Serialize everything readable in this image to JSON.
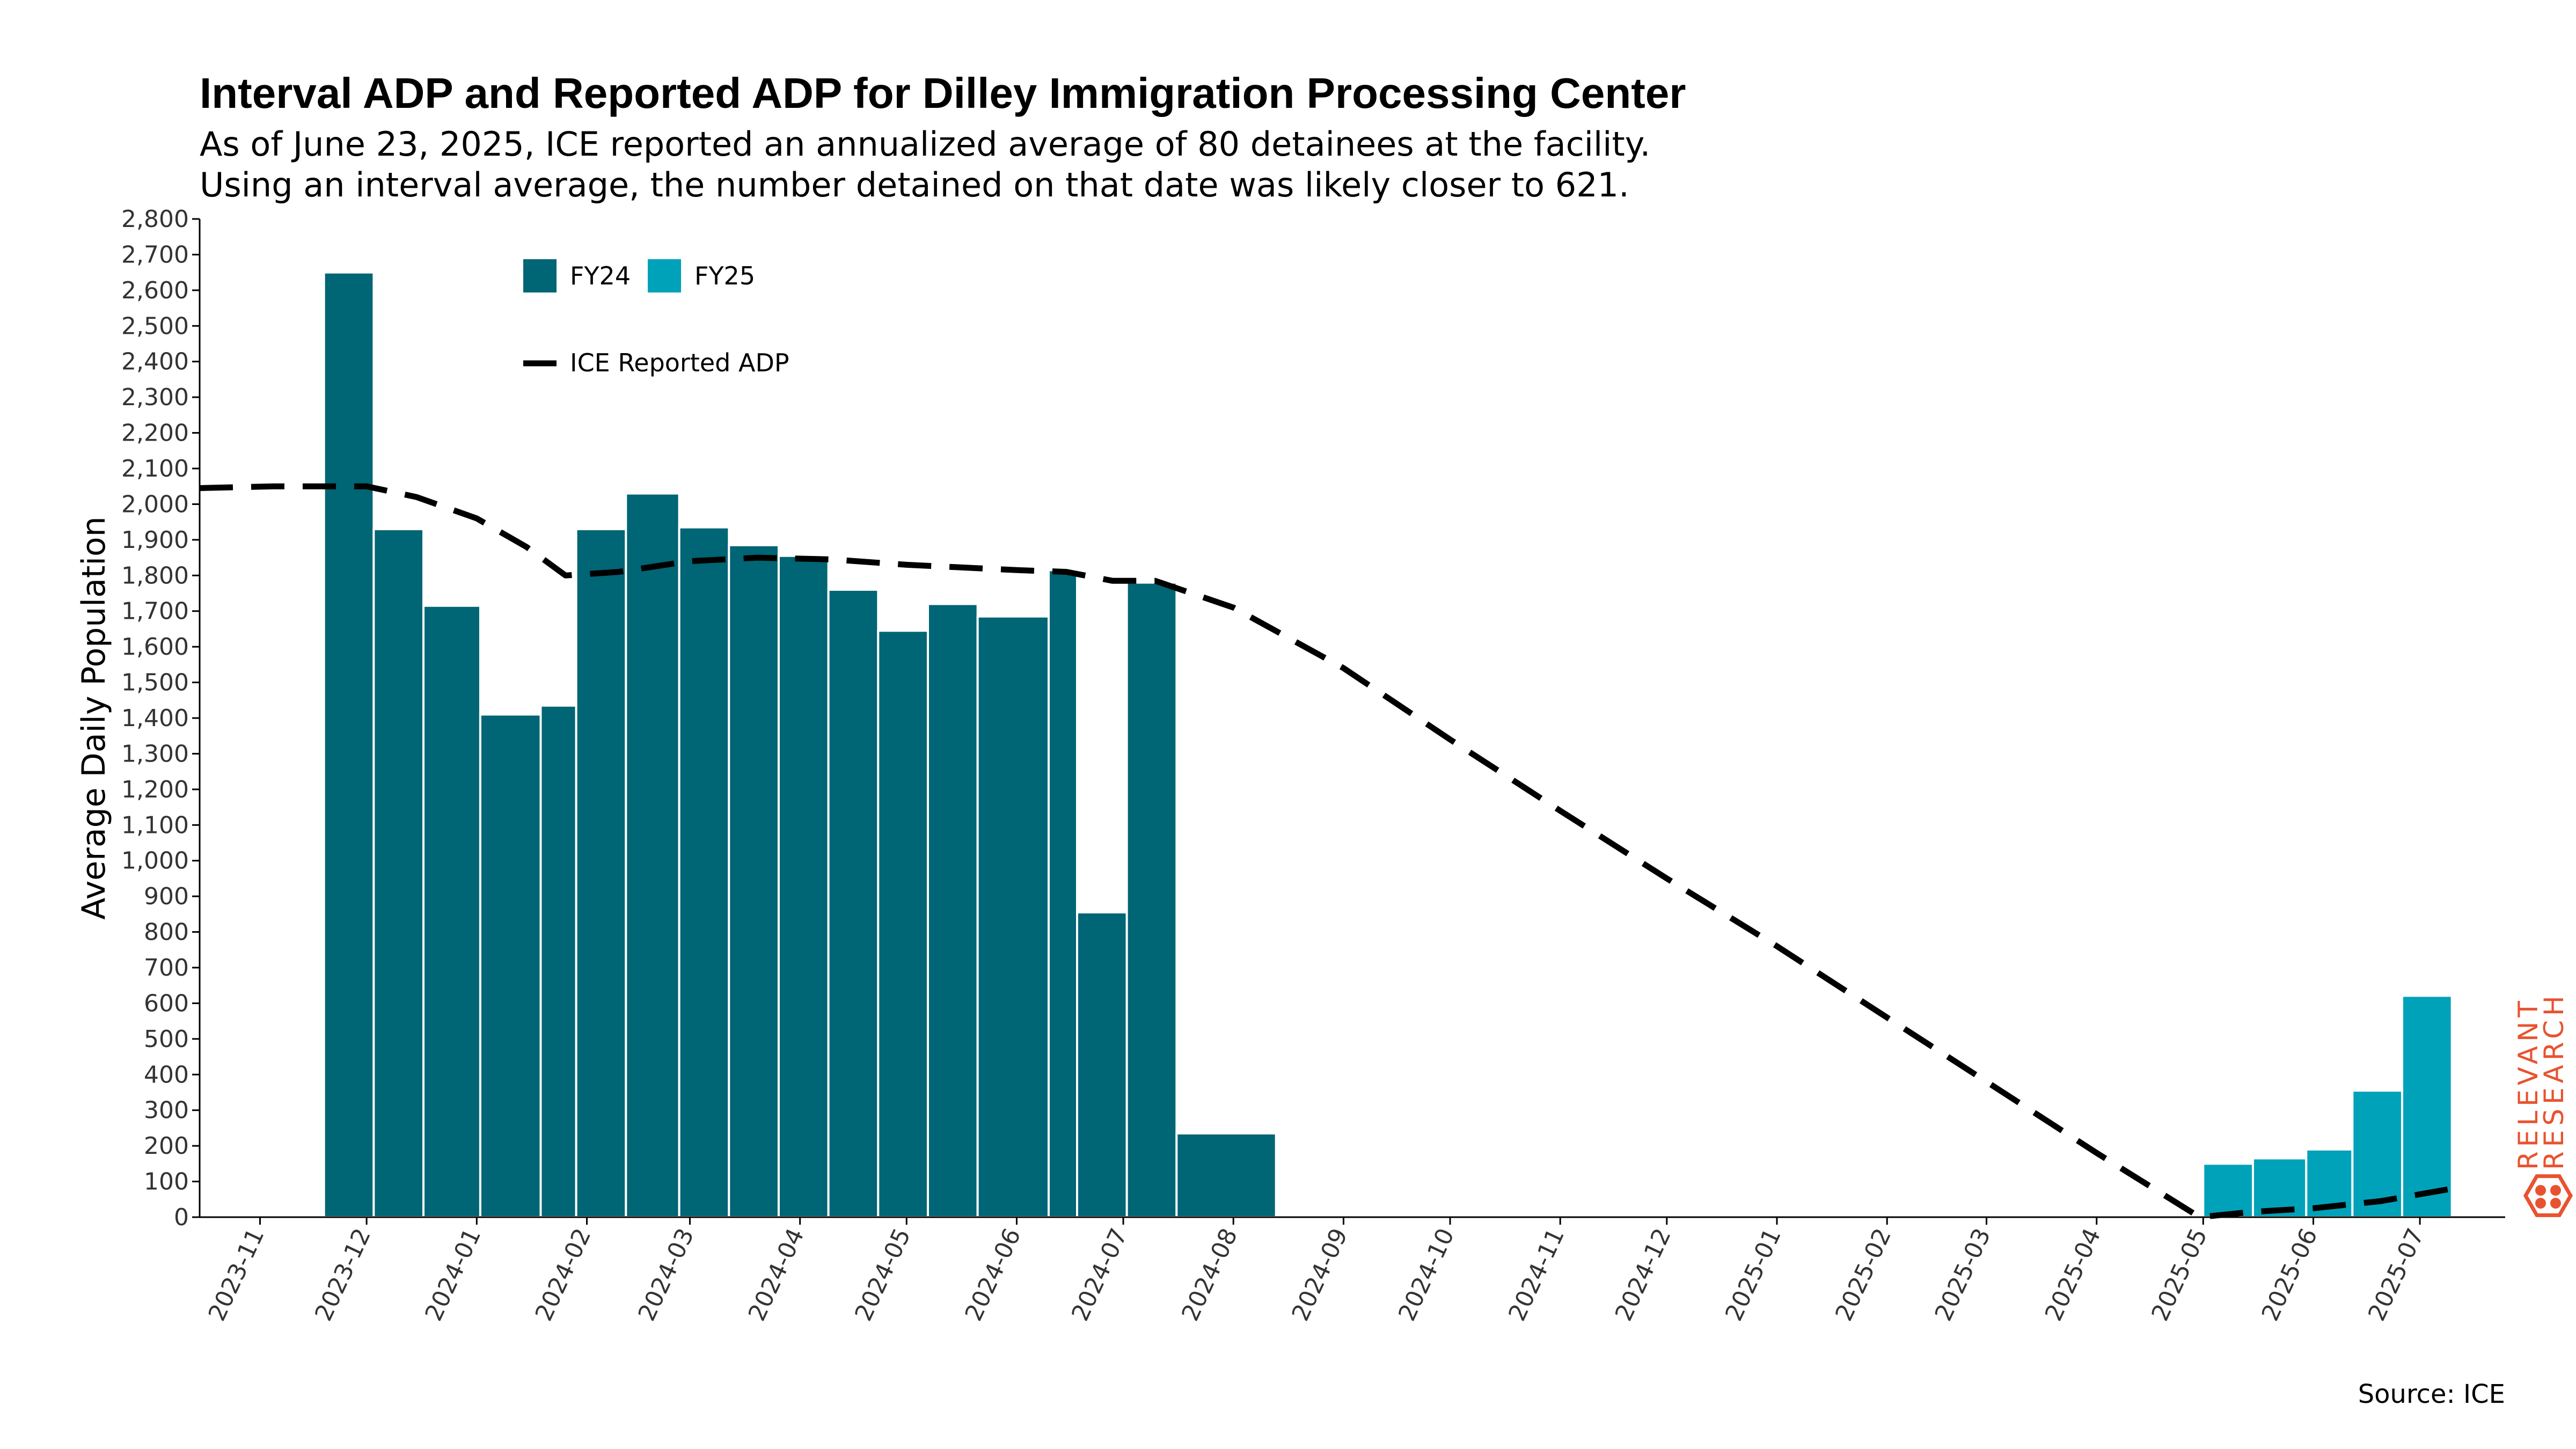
{
  "title": "Interval ADP and Reported ADP for Dilley Immigration Processing Center",
  "subtitle_line1": "As of June 23, 2025, ICE reported an annualized average of 80 detainees at the facility.",
  "subtitle_line2": "Using an interval average, the number detained on that date was likely closer to 621.",
  "source": "Source: ICE",
  "brand": {
    "line1": "RELEVANT",
    "line2": "RESEARCH",
    "color": "#e8532f",
    "icon": "hexagon-logo-icon"
  },
  "colors": {
    "fy24": "#006574",
    "fy25": "#00a2b9",
    "line": "#000000"
  },
  "chart_data": {
    "type": "bar",
    "title": "Interval ADP and Reported ADP for Dilley Immigration Processing Center",
    "ylabel": "Average Daily Population",
    "xlabel": "",
    "ylim": [
      0,
      2800
    ],
    "yticks": [
      0,
      100,
      200,
      300,
      400,
      500,
      600,
      700,
      800,
      900,
      1000,
      1100,
      1200,
      1300,
      1400,
      1500,
      1600,
      1700,
      1800,
      1900,
      2000,
      2100,
      2200,
      2300,
      2400,
      2500,
      2600,
      2700,
      2800
    ],
    "xlim": [
      "2023-10-15",
      "2025-07-25"
    ],
    "xticks": [
      "2023-11",
      "2023-12",
      "2024-01",
      "2024-02",
      "2024-03",
      "2024-04",
      "2024-05",
      "2024-06",
      "2024-07",
      "2024-08",
      "2024-09",
      "2024-10",
      "2024-11",
      "2024-12",
      "2025-01",
      "2025-02",
      "2025-03",
      "2025-04",
      "2025-05",
      "2025-06",
      "2025-07"
    ],
    "legend": {
      "position": "top-left",
      "entries": [
        "FY24",
        "FY25",
        "ICE Reported ADP"
      ]
    },
    "grid": false,
    "series": [
      {
        "name": "FY24",
        "bars": [
          {
            "start": "2023-11-19",
            "end": "2023-12-03",
            "value": 2650
          },
          {
            "start": "2023-12-03",
            "end": "2023-12-17",
            "value": 1930
          },
          {
            "start": "2023-12-17",
            "end": "2024-01-02",
            "value": 1715
          },
          {
            "start": "2024-01-02",
            "end": "2024-01-19",
            "value": 1410
          },
          {
            "start": "2024-01-19",
            "end": "2024-01-29",
            "value": 1435
          },
          {
            "start": "2024-01-29",
            "end": "2024-02-12",
            "value": 1930
          },
          {
            "start": "2024-02-12",
            "end": "2024-02-27",
            "value": 2030
          },
          {
            "start": "2024-02-27",
            "end": "2024-03-12",
            "value": 1935
          },
          {
            "start": "2024-03-12",
            "end": "2024-03-26",
            "value": 1885
          },
          {
            "start": "2024-03-26",
            "end": "2024-04-09",
            "value": 1855
          },
          {
            "start": "2024-04-09",
            "end": "2024-04-23",
            "value": 1760
          },
          {
            "start": "2024-04-23",
            "end": "2024-05-07",
            "value": 1645
          },
          {
            "start": "2024-05-07",
            "end": "2024-05-21",
            "value": 1720
          },
          {
            "start": "2024-05-21",
            "end": "2024-06-10",
            "value": 1685
          },
          {
            "start": "2024-06-10",
            "end": "2024-06-18",
            "value": 1815
          },
          {
            "start": "2024-06-18",
            "end": "2024-07-02",
            "value": 855
          },
          {
            "start": "2024-07-02",
            "end": "2024-07-16",
            "value": 1780
          },
          {
            "start": "2024-07-16",
            "end": "2024-08-13",
            "value": 235
          }
        ]
      },
      {
        "name": "FY25",
        "bars": [
          {
            "start": "2025-05-01",
            "end": "2025-05-15",
            "value": 150
          },
          {
            "start": "2025-05-15",
            "end": "2025-05-30",
            "value": 165
          },
          {
            "start": "2025-05-30",
            "end": "2025-06-12",
            "value": 190
          },
          {
            "start": "2025-06-12",
            "end": "2025-06-26",
            "value": 355
          },
          {
            "start": "2025-06-26",
            "end": "2025-07-10",
            "value": 621
          }
        ]
      },
      {
        "name": "ICE Reported ADP",
        "type": "line",
        "points": [
          {
            "x": "2023-10-15",
            "y": 2045
          },
          {
            "x": "2023-11-05",
            "y": 2050
          },
          {
            "x": "2023-12-01",
            "y": 2050
          },
          {
            "x": "2023-12-15",
            "y": 2020
          },
          {
            "x": "2024-01-01",
            "y": 1960
          },
          {
            "x": "2024-01-15",
            "y": 1880
          },
          {
            "x": "2024-01-26",
            "y": 1800
          },
          {
            "x": "2024-02-10",
            "y": 1810
          },
          {
            "x": "2024-03-01",
            "y": 1840
          },
          {
            "x": "2024-03-20",
            "y": 1850
          },
          {
            "x": "2024-04-10",
            "y": 1845
          },
          {
            "x": "2024-05-01",
            "y": 1830
          },
          {
            "x": "2024-06-01",
            "y": 1815
          },
          {
            "x": "2024-06-15",
            "y": 1810
          },
          {
            "x": "2024-06-28",
            "y": 1785
          },
          {
            "x": "2024-07-10",
            "y": 1785
          },
          {
            "x": "2024-08-01",
            "y": 1710
          },
          {
            "x": "2024-09-01",
            "y": 1540
          },
          {
            "x": "2024-10-01",
            "y": 1340
          },
          {
            "x": "2024-11-01",
            "y": 1140
          },
          {
            "x": "2024-12-01",
            "y": 950
          },
          {
            "x": "2025-01-01",
            "y": 760
          },
          {
            "x": "2025-02-01",
            "y": 560
          },
          {
            "x": "2025-03-01",
            "y": 380
          },
          {
            "x": "2025-04-01",
            "y": 180
          },
          {
            "x": "2025-04-30",
            "y": 0
          },
          {
            "x": "2025-05-15",
            "y": 15
          },
          {
            "x": "2025-06-01",
            "y": 25
          },
          {
            "x": "2025-06-20",
            "y": 45
          },
          {
            "x": "2025-07-10",
            "y": 80
          }
        ]
      }
    ]
  }
}
